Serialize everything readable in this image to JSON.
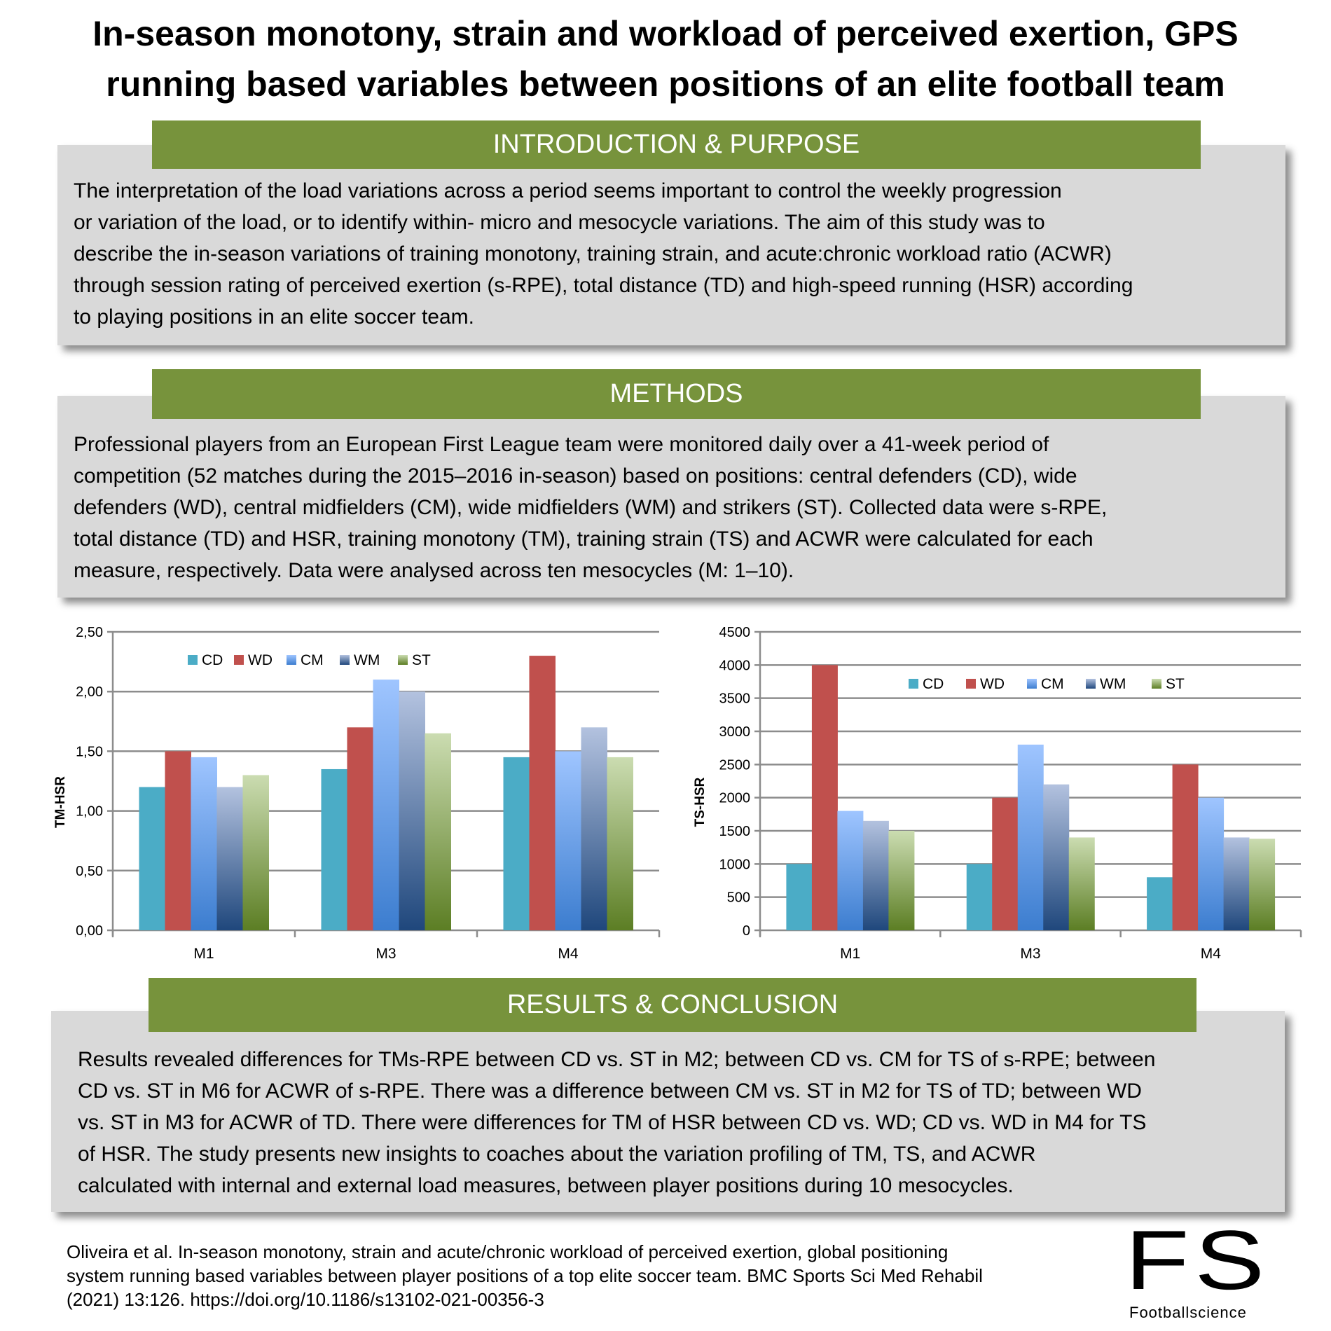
{
  "title": {
    "line1": "In-season monotony, strain and workload of perceived exertion, GPS",
    "line2": "running based variables between positions of an elite football team"
  },
  "introduction": {
    "heading": "INTRODUCTION & PURPOSE",
    "lines": [
      "The interpretation of the load variations across a period seems important to control the weekly progression",
      "or variation of the load, or to identify within- micro and mesocycle variations. The aim of this study was to",
      "describe the in-season variations of training monotony, training strain, and acute:chronic workload ratio (ACWR)",
      "through session rating of perceived exertion (s-RPE), total distance (TD) and high-speed running (HSR) according",
      "to playing positions in an elite soccer team."
    ]
  },
  "methods": {
    "heading": "METHODS",
    "lines": [
      "Professional players from an European First League team were monitored daily over a 41-week period of",
      "competition (52 matches during the 2015–2016 in-season) based on positions: central defenders (CD), wide",
      "defenders (WD), central midfielders (CM), wide midfielders (WM) and strikers (ST). Collected data were s-RPE,",
      "total distance (TD) and HSR, training monotony (TM), training strain (TS) and ACWR were calculated for each",
      "measure, respectively. Data were analysed across ten mesocycles (M: 1–10)."
    ]
  },
  "results": {
    "heading": "RESULTS & CONCLUSION",
    "lines": [
      "Results revealed differences for TMs-RPE between CD vs. ST in M2; between CD vs. CM for TS of s-RPE; between",
      "CD vs. ST in M6 for ACWR of s-RPE. There was a difference between CM vs. ST in M2 for TS of TD; between WD",
      "vs. ST in M3 for ACWR of TD. There were differences for TM of HSR between CD vs. WD; CD vs. WD in M4 for TS",
      "of HSR. The study presents new insights to coaches about the variation profiling of TM, TS, and ACWR",
      "calculated with internal and external load measures, between player positions during 10 mesocycles."
    ]
  },
  "citation": {
    "lines": [
      "Oliveira et al. In-season monotony, strain and acute/chronic workload of perceived exertion, global positioning",
      "system running based variables between player positions of a top elite soccer team. BMC Sports Sci Med Rehabil",
      "(2021) 13:126. https://doi.org/10.1186/s13102-021-00356-3"
    ]
  },
  "logo": {
    "letters": "FS",
    "name": "Footballscience"
  },
  "colors": {
    "section_header": "#77933c",
    "box": "#d9d9d9",
    "CD": "#4bacc6",
    "WD": "#c0504d",
    "CM": "#8fb8ff",
    "WM": "#7f95bb",
    "ST": "#a9c37d"
  },
  "chart_data": [
    {
      "type": "bar",
      "title": "",
      "xlabel": "",
      "ylabel": "TM-HSR",
      "categories": [
        "M1",
        "M3",
        "M4"
      ],
      "ylim": [
        0,
        2.5
      ],
      "yticks": [
        "0,00",
        "0,50",
        "1,00",
        "1,50",
        "2,00",
        "2,50"
      ],
      "ytick_values": [
        0,
        0.5,
        1,
        1.5,
        2,
        2.5
      ],
      "grid": true,
      "legend": "top-left",
      "series": [
        {
          "name": "CD",
          "values": [
            1.2,
            1.35,
            1.45
          ]
        },
        {
          "name": "WD",
          "values": [
            1.5,
            1.7,
            2.3
          ]
        },
        {
          "name": "CM",
          "values": [
            1.45,
            2.1,
            1.5
          ]
        },
        {
          "name": "WM",
          "values": [
            1.2,
            2.0,
            1.7
          ]
        },
        {
          "name": "ST",
          "values": [
            1.3,
            1.65,
            1.45
          ]
        }
      ]
    },
    {
      "type": "bar",
      "title": "",
      "xlabel": "",
      "ylabel": "TS-HSR",
      "categories": [
        "M1",
        "M3",
        "M4"
      ],
      "ylim": [
        0,
        4500
      ],
      "yticks": [
        "0",
        "500",
        "1000",
        "1500",
        "2000",
        "2500",
        "3000",
        "3500",
        "4000",
        "4500"
      ],
      "ytick_values": [
        0,
        500,
        1000,
        1500,
        2000,
        2500,
        3000,
        3500,
        4000,
        4500
      ],
      "grid": true,
      "legend": "top-right",
      "series": [
        {
          "name": "CD",
          "values": [
            1000,
            1000,
            800
          ]
        },
        {
          "name": "WD",
          "values": [
            4000,
            2000,
            2500
          ]
        },
        {
          "name": "CM",
          "values": [
            1800,
            2800,
            2000
          ]
        },
        {
          "name": "WM",
          "values": [
            1650,
            2200,
            1400
          ]
        },
        {
          "name": "ST",
          "values": [
            1500,
            1400,
            1380
          ]
        }
      ]
    }
  ]
}
